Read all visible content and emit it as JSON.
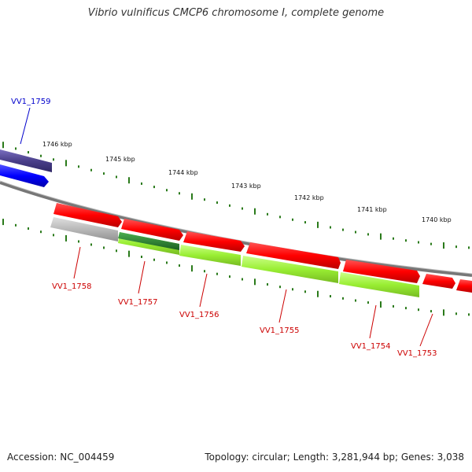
{
  "title": "Vibrio vulnificus CMCP6 chromosome I, complete genome",
  "accession_label": "Accession: NC_004459",
  "topology_label": "Topology: circular; Length: 3,281,944 bp; Genes: 3,038",
  "kbp_ticks": [
    {
      "label": "1746 kbp"
    },
    {
      "label": "1745 kbp"
    },
    {
      "label": "1744 kbp"
    },
    {
      "label": "1743 kbp"
    },
    {
      "label": "1742 kbp"
    },
    {
      "label": "1741 kbp"
    },
    {
      "label": "1740 kbp"
    }
  ],
  "genes": [
    {
      "label": "VV1_1759",
      "color": "#0000cc"
    },
    {
      "label": "VV1_1758",
      "color": "#cc0000"
    },
    {
      "label": "VV1_1757",
      "color": "#cc0000"
    },
    {
      "label": "VV1_1756",
      "color": "#cc0000"
    },
    {
      "label": "VV1_1755",
      "color": "#cc0000"
    },
    {
      "label": "VV1_1754",
      "color": "#cc0000"
    },
    {
      "label": "VV1_1753",
      "color": "#cc0000"
    }
  ],
  "colors": {
    "backbone": "#888888",
    "tick": "#2a7a1a",
    "cds_forward": "#ff0000",
    "cds_dark": "#4a3f8a",
    "cds_blue": "#0000ff",
    "cds_gray": "#b0b0b0",
    "cds_green": "#99ee33",
    "cds_darkgreen": "#2e7d32"
  }
}
